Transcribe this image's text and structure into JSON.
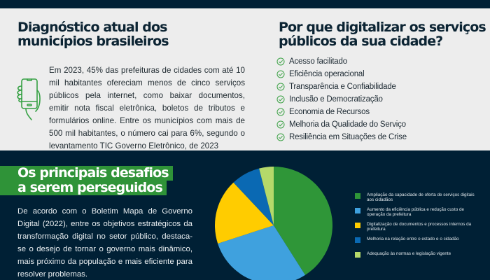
{
  "diagnostic": {
    "title_line1": "Diagnóstico atual dos",
    "title_line2": "municípios brasileiros",
    "icon": "smartphone-in-hand-icon",
    "text": "Em 2023, 45% das prefeituras de cidades com até 10 mil habitantes ofereciam menos de cinco serviços públicos pela internet, como baixar documentos, emitir nota fiscal eletrônica, boletos de tributos e formulários online. Entre os municípios com mais de 500 mil habitantes, o número cai para 6%, segundo o levantamento TIC Governo Eletrônico, de 2023"
  },
  "why": {
    "title_line1": "Por que digitalizar os serviços",
    "title_line2": "públicos da sua cidade?",
    "icon": "check-circle-icon",
    "items": [
      "Acesso facilitado",
      "Eficiência operacional",
      "Transparência e Confiabilidade",
      "Inclusão e Democratização",
      "Economia de Recursos",
      "Melhoria da Qualidade do Serviço",
      "Resiliência em Situações de Crise"
    ]
  },
  "challenges": {
    "title_line1": "Os principais desafios",
    "title_line2": "a serem perseguidos",
    "text": "De acordo com o Boletim Mapa de Governo Digital (2022), entre os objetivos estratégicos da transformação digital no setor público, destaca-se o desejo de tornar o governo mais dinâmico, mais próximo da população e mais eficiente para resolver problemas."
  },
  "colors": {
    "dark_bg": "#002035",
    "light_bg": "#ededed",
    "accent_green": "#2f9338",
    "title_dark": "#0c2433"
  },
  "chart_data": {
    "type": "pie",
    "title": "",
    "legend_position": "right",
    "categories": [
      "Ampliação da capacidade de oferta de serviços digitais aos cidadãos",
      "Aumento da eficiência pública e redução custo de operação da prefeitura",
      "Digitalização de documentos e processos internos da prefeitura",
      "Melhoria na relação entre o estado e o cidadão",
      "Adequação às normas e legislação vigente"
    ],
    "values": [
      41,
      29,
      18,
      8,
      4
    ],
    "colors": [
      "#2f9638",
      "#3fa1de",
      "#ffcc00",
      "#0a69b3",
      "#b5d96a"
    ]
  }
}
